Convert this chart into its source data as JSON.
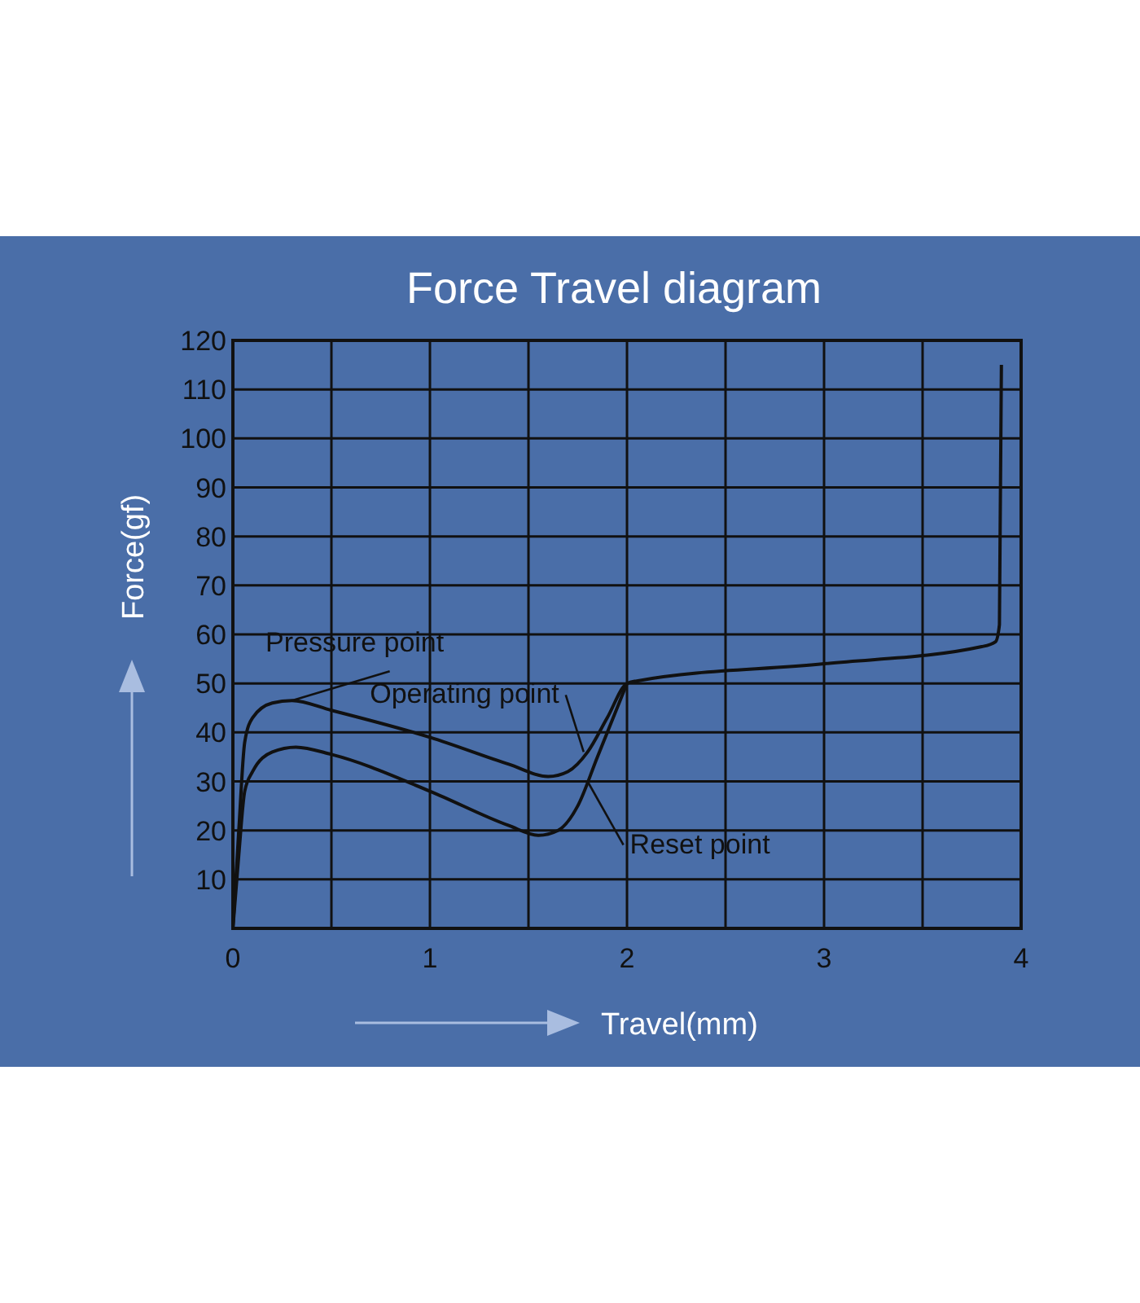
{
  "chart_data": {
    "type": "line",
    "title": "Force Travel diagram",
    "xlabel": "Travel(mm)",
    "ylabel": "Force(gf)",
    "xlim": [
      0,
      4
    ],
    "ylim": [
      0,
      120
    ],
    "xticks": [
      0,
      {
        "value": 0.5,
        "label": null
      },
      1,
      {
        "value": 1.5,
        "label": null
      },
      2,
      {
        "value": 2.5,
        "label": null
      },
      3,
      {
        "value": 3.5,
        "label": null
      },
      4
    ],
    "yticks": [
      10,
      20,
      30,
      40,
      50,
      60,
      70,
      80,
      90,
      100,
      110,
      120
    ],
    "grid": true,
    "marker": "none",
    "line_style": "solid",
    "series": [
      {
        "color": "#111111",
        "x": [
          0,
          0.03,
          0.06,
          0.1,
          0.2,
          0.3,
          0.5,
          1.0,
          1.4,
          1.6,
          1.7,
          1.8,
          1.9,
          2.0,
          2.05,
          3.0,
          3.8,
          3.87,
          3.89,
          3.9
        ],
        "values": [
          0,
          20,
          38,
          43,
          46,
          46.5,
          44.5,
          39,
          33.5,
          31,
          32,
          36,
          43,
          50,
          50.5,
          54,
          57.5,
          58.5,
          62,
          115
        ]
      },
      {
        "color": "#111111",
        "x": [
          0,
          0.03,
          0.06,
          0.1,
          0.2,
          0.32,
          0.5,
          1.0,
          1.4,
          1.55,
          1.65,
          1.75,
          1.85,
          1.95,
          2.0
        ],
        "values": [
          0,
          15,
          28,
          32,
          36,
          37,
          35.5,
          28,
          21,
          19,
          20,
          25,
          35,
          45,
          50
        ]
      }
    ],
    "annotations": [
      {
        "text": "Pressure point",
        "x": 0.3,
        "y": 46.5
      },
      {
        "text": "Operating point",
        "x": 1.78,
        "y": 36
      },
      {
        "text": "Reset point",
        "x": 1.8,
        "y": 30
      }
    ]
  }
}
